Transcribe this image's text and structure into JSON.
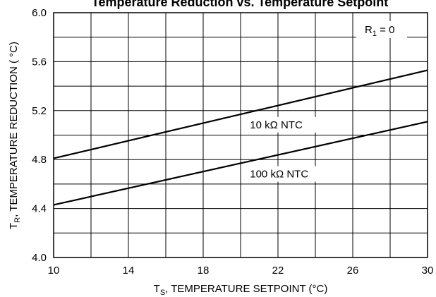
{
  "chart_data": {
    "type": "line",
    "title": "Temperature Reduction vs. Temperature Setpoint",
    "xlabel": {
      "main": "T",
      "sub": "S",
      "rest": ", TEMPERATURE SETPOINT (°C)"
    },
    "ylabel": {
      "main": "T",
      "sub": "R",
      "rest": ", TEMPERATURE REDUCTION ( °C)"
    },
    "xlim": [
      10,
      30
    ],
    "ylim": [
      4.0,
      6.0
    ],
    "x_ticks": [
      "10",
      "14",
      "18",
      "22",
      "26",
      "30"
    ],
    "y_ticks": [
      "4.0",
      "4.4",
      "4.8",
      "5.2",
      "5.6",
      "6.0"
    ],
    "grid": true,
    "annotation": {
      "main": "R",
      "sub": "1",
      "rest": " = 0"
    },
    "series": [
      {
        "name": "10 kΩ NTC",
        "x": [
          10,
          30
        ],
        "y": [
          4.81,
          5.53
        ]
      },
      {
        "name": "100 kΩ NTC",
        "x": [
          10,
          30
        ],
        "y": [
          4.43,
          5.11
        ]
      }
    ]
  }
}
